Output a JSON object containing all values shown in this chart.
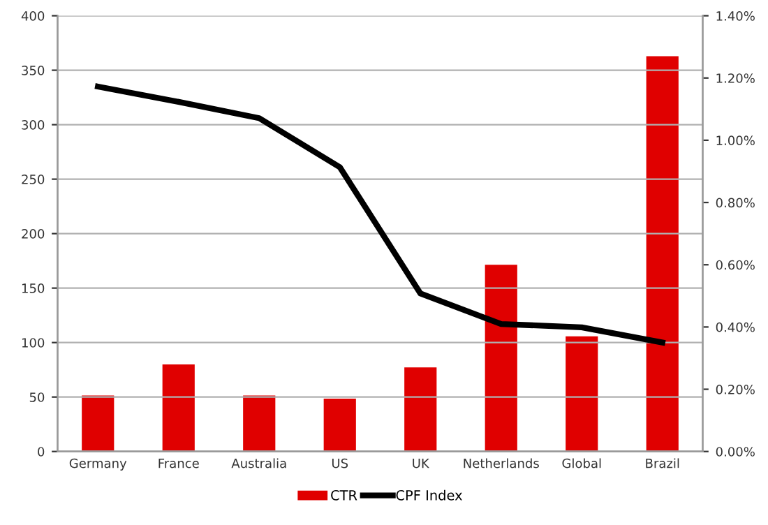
{
  "chart_data": {
    "type": "bar",
    "categories": [
      "Germany",
      "France",
      "Australia",
      "US",
      "UK",
      "Netherlands",
      "Global",
      "Brazil"
    ],
    "series": [
      {
        "name": "CTR",
        "axis": "y2",
        "color": "#e00000",
        "values": [
          0.18,
          0.28,
          0.18,
          0.17,
          0.27,
          0.6,
          0.37,
          1.27
        ]
      },
      {
        "name": "CPF Index",
        "type": "line",
        "axis": "y",
        "color": "#000000",
        "values": [
          335,
          321,
          306,
          261,
          145,
          117,
          114,
          100
        ]
      }
    ],
    "ylim": [
      0,
      400
    ],
    "yticks": [
      0,
      50,
      100,
      150,
      200,
      250,
      300,
      350,
      400
    ],
    "y2lim": [
      0,
      1.4
    ],
    "y2ticks": [
      {
        "value": 0,
        "label": "0.00%"
      },
      {
        "value": 0.2,
        "label": "0.20%"
      },
      {
        "value": 0.4,
        "label": "0.40%"
      },
      {
        "value": 0.6,
        "label": "0.60%"
      },
      {
        "value": 0.8,
        "label": "0.80%"
      },
      {
        "value": 1.0,
        "label": "1.00%"
      },
      {
        "value": 1.2,
        "label": "1.20%"
      },
      {
        "value": 1.4,
        "label": "1.40%"
      }
    ],
    "grid": "y",
    "legend": "bottom",
    "marker": "none",
    "line_style": "solid"
  }
}
